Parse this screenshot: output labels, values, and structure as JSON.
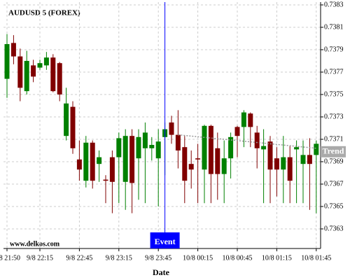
{
  "chart_data": {
    "type": "candlestick",
    "title": "AUDUSD 5 (FOREX)",
    "source": "www.delkos.com",
    "x_label": "Date",
    "categories": [
      "9/8 21:50",
      null,
      null,
      null,
      null,
      "9/8 22:15",
      null,
      null,
      null,
      null,
      null,
      "9/8 22:45",
      null,
      null,
      null,
      null,
      null,
      "9/8 23:15",
      null,
      null,
      null,
      null,
      null,
      "9/8 23:45",
      null,
      null,
      null,
      null,
      null,
      "10/8 00:15",
      null,
      null,
      null,
      null,
      null,
      "10/8 00:45",
      null,
      null,
      null,
      null,
      null,
      "10/8 01:15",
      null,
      null,
      null,
      null,
      null,
      "10/8 01:45"
    ],
    "open": [
      0.73764,
      0.73796,
      0.73784,
      0.73753,
      0.73776,
      0.73774,
      0.73776,
      0.73783,
      0.73778,
      0.73713,
      0.73739,
      0.73692,
      0.73673,
      0.73707,
      0.73688,
      0.73674,
      0.73694,
      0.73694,
      0.73672,
      0.73713,
      0.73693,
      0.73702,
      0.73702,
      0.73693,
      0.73712,
      0.73725,
      0.73714,
      0.73703,
      0.73688,
      0.73693,
      0.73683,
      0.73722,
      0.73702,
      0.73679,
      0.73693,
      0.73721,
      0.73721,
      0.73733,
      0.73716,
      0.73701,
      0.73708,
      0.73693,
      0.73683,
      0.73694,
      0.73701,
      0.73688,
      0.73696,
      0.73696
    ],
    "high": [
      0.73804,
      0.73803,
      0.73791,
      0.73789,
      0.73781,
      0.73781,
      0.73788,
      0.73786,
      0.73779,
      0.73756,
      0.73744,
      0.73709,
      0.73713,
      0.73709,
      0.737,
      0.73678,
      0.737,
      0.73716,
      0.73719,
      0.73719,
      0.73719,
      0.73725,
      0.73712,
      0.73719,
      0.73725,
      0.73731,
      0.73736,
      0.73713,
      0.737,
      0.73706,
      0.73723,
      0.73723,
      0.73716,
      0.73709,
      0.73716,
      0.73722,
      0.73736,
      0.73734,
      0.73722,
      0.73719,
      0.73713,
      0.73703,
      0.73713,
      0.73704,
      0.73709,
      0.73709,
      0.73711,
      0.73709
    ],
    "low": [
      0.73747,
      0.73777,
      0.73744,
      0.7375,
      0.73761,
      0.73772,
      0.73772,
      0.73752,
      0.73744,
      0.73709,
      0.73697,
      0.73673,
      0.73667,
      0.73666,
      0.73672,
      0.73653,
      0.73644,
      0.73653,
      0.73647,
      0.73644,
      0.73656,
      0.73653,
      0.73691,
      0.7365,
      0.73678,
      0.73706,
      0.73684,
      0.73653,
      0.73666,
      0.73653,
      0.73653,
      0.73653,
      0.73656,
      0.73653,
      0.73675,
      0.73694,
      0.73703,
      0.73703,
      0.73684,
      0.73653,
      0.73653,
      0.73659,
      0.73653,
      0.73653,
      0.73653,
      0.73653,
      0.73647,
      0.73644
    ],
    "close": [
      0.73795,
      0.73784,
      0.73756,
      0.7378,
      0.73766,
      0.73778,
      0.73783,
      0.73753,
      0.7375,
      0.73742,
      0.73702,
      0.73683,
      0.73707,
      0.73673,
      0.73694,
      0.73673,
      0.73672,
      0.73711,
      0.73713,
      0.73671,
      0.73712,
      0.73716,
      0.73705,
      0.73708,
      0.73719,
      0.73714,
      0.737,
      0.73673,
      0.73683,
      0.73692,
      0.73722,
      0.73679,
      0.73679,
      0.73693,
      0.73712,
      0.73713,
      0.73734,
      0.73721,
      0.73702,
      0.73704,
      0.73683,
      0.73683,
      0.73694,
      0.73673,
      0.73703,
      0.73696,
      0.73688,
      0.73706
    ],
    "up_color": "#008000",
    "down_color": "#800000",
    "ylim": [
      0.736125,
      0.738325
    ],
    "yticks": [
      0.7363,
      0.7365,
      0.7367,
      0.7369,
      0.7371,
      0.7373,
      0.7375,
      0.7377,
      0.7379,
      0.7381,
      0.7383
    ],
    "grid": true,
    "event": {
      "label": "Event",
      "index": 24,
      "color": "#0000ff"
    },
    "trend": {
      "label": "Trend",
      "start_index": 26,
      "start_value": 0.73714,
      "end_index": 47,
      "end_value": 0.73702,
      "color": "#999999"
    }
  }
}
